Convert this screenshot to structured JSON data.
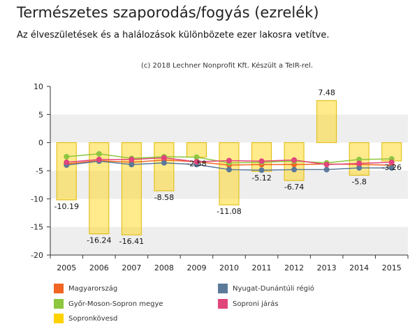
{
  "header": {
    "title": "Természetes szaporodás/fogyás (ezrelék)",
    "subtitle": "Az élveszületések és a halálozások különbözete ezer lakosra vetítve.",
    "credit": "(c) 2018 Lechner Nonprofit Kft. Készült a TeIR-rel."
  },
  "chart_data": {
    "type": "bar",
    "categories": [
      "2005",
      "2006",
      "2007",
      "2008",
      "2009",
      "2010",
      "2011",
      "2012",
      "2013",
      "2014",
      "2015"
    ],
    "ylim": [
      -20,
      10
    ],
    "yticks": [
      10,
      5,
      0,
      -5,
      -10,
      -15,
      -20
    ],
    "grid": "alternating horizontal bands",
    "bar_series": {
      "name": "Sopronkövesd",
      "color": "#ffd200",
      "values": [
        -10.19,
        -16.24,
        -16.41,
        -8.58,
        -2.58,
        -11.08,
        -5.12,
        -6.74,
        7.48,
        -5.8,
        -3.26
      ],
      "labels": [
        "-10.19",
        "-16.24",
        "-16.41",
        "-8.58",
        "-2.58",
        "-11.08",
        "-5.12",
        "-6.74",
        "7.48",
        "-5.8",
        "-3.26"
      ]
    },
    "line_series": [
      {
        "name": "Magyarország",
        "color": "#f26522",
        "values": [
          -3.8,
          -3.2,
          -3.5,
          -3.1,
          -3.4,
          -4.0,
          -3.9,
          -3.9,
          -3.8,
          -3.9,
          -4.0
        ]
      },
      {
        "name": "Nyugat-Dunántúli régió",
        "color": "#5b7a99",
        "values": [
          -4.0,
          -3.3,
          -3.9,
          -3.6,
          -3.9,
          -4.8,
          -4.9,
          -4.8,
          -4.8,
          -4.5,
          -4.5
        ]
      },
      {
        "name": "Győr-Moson-Sopron megye",
        "color": "#8dc63f",
        "values": [
          -2.5,
          -2.0,
          -2.8,
          -2.5,
          -2.6,
          -3.6,
          -3.5,
          -3.3,
          -3.6,
          -3.0,
          -2.9
        ]
      },
      {
        "name": "Soproni járás",
        "color": "#e0457b",
        "values": [
          -3.5,
          -3.0,
          -3.0,
          -2.7,
          -3.4,
          -3.2,
          -3.3,
          -3.1,
          -3.9,
          -3.7,
          -3.5
        ]
      }
    ],
    "legend": {
      "position": "bottom",
      "entries": [
        {
          "label": "Magyarország",
          "color": "#f26522"
        },
        {
          "label": "Nyugat-Dunántúli régió",
          "color": "#5b7a99"
        },
        {
          "label": "Győr-Moson-Sopron megye",
          "color": "#8dc63f"
        },
        {
          "label": "Soproni járás",
          "color": "#e0457b"
        },
        {
          "label": "Sopronkövesd",
          "color": "#ffd200"
        }
      ]
    }
  }
}
